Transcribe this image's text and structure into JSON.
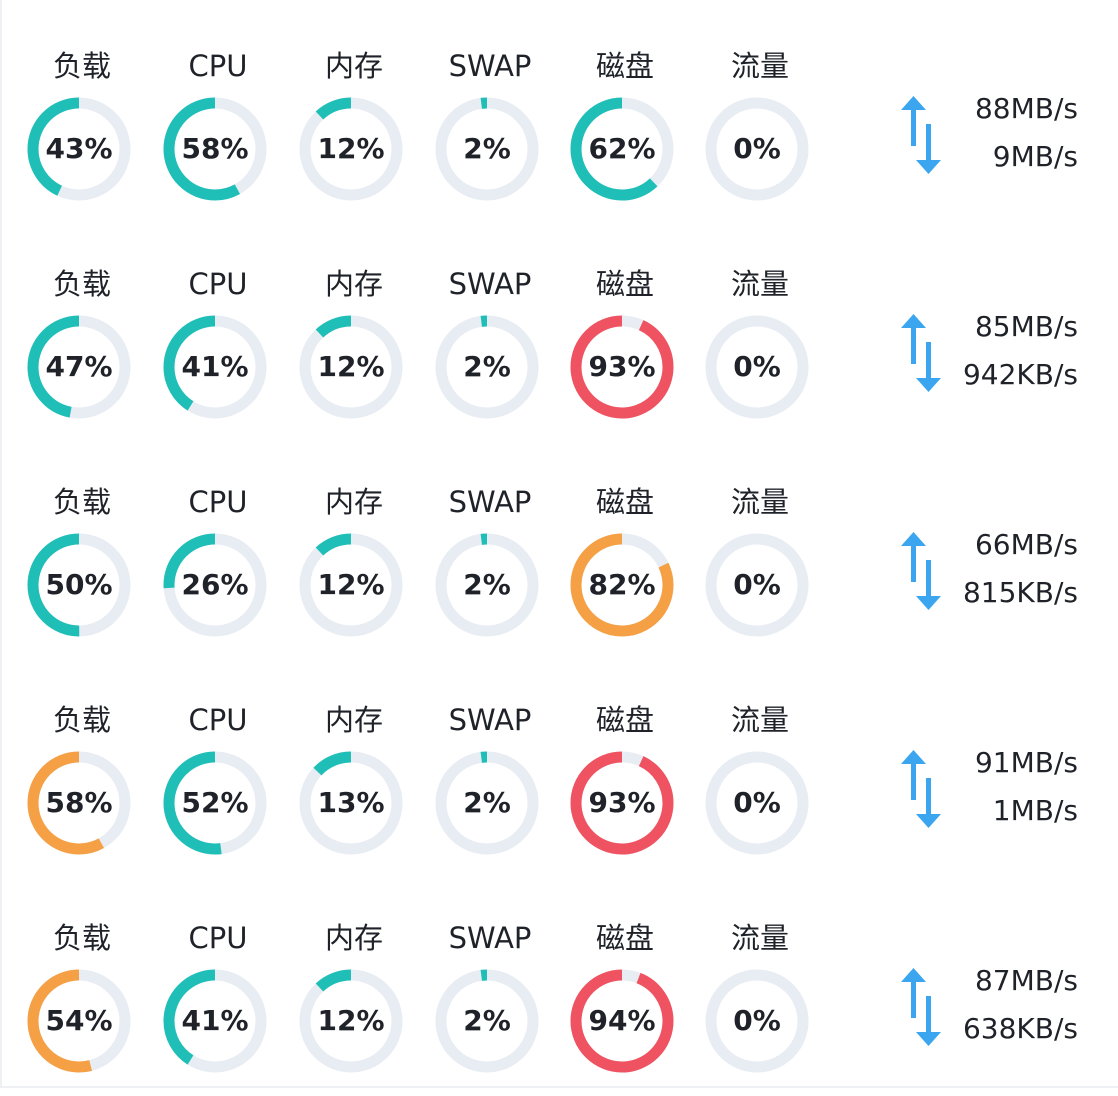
{
  "colors": {
    "normal": "#1fbfb8",
    "warning": "#f5a044",
    "critical": "#ef5361",
    "track": "#e8ecf3",
    "arrow": "#3ba6ef"
  },
  "servers": [
    {
      "metrics": [
        {
          "label": "负载",
          "value": 43,
          "text": "43%",
          "status": "normal"
        },
        {
          "label": "CPU",
          "value": 58,
          "text": "58%",
          "status": "normal"
        },
        {
          "label": "内存",
          "value": 12,
          "text": "12%",
          "status": "normal"
        },
        {
          "label": "SWAP",
          "value": 2,
          "text": "2%",
          "status": "normal"
        },
        {
          "label": "磁盘",
          "value": 62,
          "text": "62%",
          "status": "normal"
        },
        {
          "label": "流量",
          "value": 0,
          "text": "0%",
          "status": "normal"
        }
      ],
      "traffic": {
        "up": "88MB/s",
        "down": "9MB/s"
      }
    },
    {
      "metrics": [
        {
          "label": "负载",
          "value": 47,
          "text": "47%",
          "status": "normal"
        },
        {
          "label": "CPU",
          "value": 41,
          "text": "41%",
          "status": "normal"
        },
        {
          "label": "内存",
          "value": 12,
          "text": "12%",
          "status": "normal"
        },
        {
          "label": "SWAP",
          "value": 2,
          "text": "2%",
          "status": "normal"
        },
        {
          "label": "磁盘",
          "value": 93,
          "text": "93%",
          "status": "critical"
        },
        {
          "label": "流量",
          "value": 0,
          "text": "0%",
          "status": "normal"
        }
      ],
      "traffic": {
        "up": "85MB/s",
        "down": "942KB/s"
      }
    },
    {
      "metrics": [
        {
          "label": "负载",
          "value": 50,
          "text": "50%",
          "status": "normal"
        },
        {
          "label": "CPU",
          "value": 26,
          "text": "26%",
          "status": "normal"
        },
        {
          "label": "内存",
          "value": 12,
          "text": "12%",
          "status": "normal"
        },
        {
          "label": "SWAP",
          "value": 2,
          "text": "2%",
          "status": "normal"
        },
        {
          "label": "磁盘",
          "value": 82,
          "text": "82%",
          "status": "warning"
        },
        {
          "label": "流量",
          "value": 0,
          "text": "0%",
          "status": "normal"
        }
      ],
      "traffic": {
        "up": "66MB/s",
        "down": "815KB/s"
      }
    },
    {
      "metrics": [
        {
          "label": "负载",
          "value": 58,
          "text": "58%",
          "status": "warning"
        },
        {
          "label": "CPU",
          "value": 52,
          "text": "52%",
          "status": "normal"
        },
        {
          "label": "内存",
          "value": 13,
          "text": "13%",
          "status": "normal"
        },
        {
          "label": "SWAP",
          "value": 2,
          "text": "2%",
          "status": "normal"
        },
        {
          "label": "磁盘",
          "value": 93,
          "text": "93%",
          "status": "critical"
        },
        {
          "label": "流量",
          "value": 0,
          "text": "0%",
          "status": "normal"
        }
      ],
      "traffic": {
        "up": "91MB/s",
        "down": "1MB/s"
      }
    },
    {
      "metrics": [
        {
          "label": "负载",
          "value": 54,
          "text": "54%",
          "status": "warning"
        },
        {
          "label": "CPU",
          "value": 41,
          "text": "41%",
          "status": "normal"
        },
        {
          "label": "内存",
          "value": 12,
          "text": "12%",
          "status": "normal"
        },
        {
          "label": "SWAP",
          "value": 2,
          "text": "2%",
          "status": "normal"
        },
        {
          "label": "磁盘",
          "value": 94,
          "text": "94%",
          "status": "critical"
        },
        {
          "label": "流量",
          "value": 0,
          "text": "0%",
          "status": "normal"
        }
      ],
      "traffic": {
        "up": "87MB/s",
        "down": "638KB/s"
      }
    }
  ]
}
